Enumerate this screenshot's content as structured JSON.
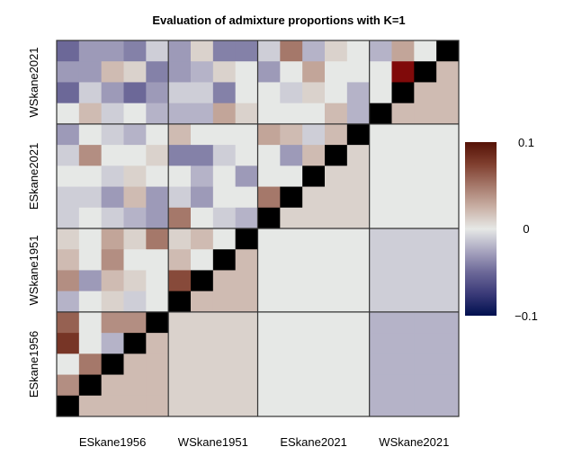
{
  "chart_data": {
    "type": "heatmap",
    "title": "Evaluation of admixture proportions with K=1",
    "populations_x": [
      "ESkane1956",
      "WSkane1951",
      "ESkane2021",
      "WSkane2021"
    ],
    "populations_y_top_to_bottom": [
      "WSkane2021",
      "ESkane2021",
      "WSkane1951",
      "ESkane1956"
    ],
    "population_sizes_x": [
      5,
      4,
      5,
      4
    ],
    "population_sizes_y_top_to_bottom": [
      4,
      5,
      4,
      5
    ],
    "colorbar": {
      "min": -0.1,
      "max": 0.1,
      "tick_labels": [
        "0.1",
        "0",
        "−0.1"
      ],
      "ticks": [
        0.1,
        0,
        -0.1
      ]
    },
    "colors": {
      "low": "#00104f",
      "mid": "#e6e8e6",
      "high": "#551206",
      "out_of_range": "#800a0a",
      "diagonal": "#000000"
    },
    "matrix_rows_top_to_bottom": [
      [
        -0.05,
        -0.03,
        -0.03,
        -0.04,
        -0.01,
        -0.03,
        0.01,
        -0.04,
        -0.04,
        -0.01,
        0.05,
        -0.02,
        0.01,
        0,
        -0.02,
        0.03,
        0,
        null
      ],
      [
        -0.03,
        -0.03,
        0.02,
        0.01,
        -0.04,
        -0.03,
        -0.02,
        0.01,
        0,
        -0.03,
        0,
        0.03,
        0,
        0,
        0,
        0.12,
        null,
        0.02
      ],
      [
        -0.05,
        -0.01,
        -0.03,
        -0.05,
        -0.03,
        -0.01,
        -0.01,
        -0.04,
        0,
        0,
        -0.01,
        0.01,
        0,
        -0.02,
        0,
        null,
        0.02,
        0.02
      ],
      [
        0,
        0.02,
        -0.01,
        0,
        -0.02,
        -0.02,
        -0.02,
        0.03,
        0.01,
        0,
        0,
        0,
        0.02,
        -0.02,
        null,
        0.02,
        0.02,
        0.02
      ],
      [
        -0.03,
        0,
        -0.01,
        -0.02,
        0,
        0.02,
        0,
        0,
        0,
        0.03,
        0.02,
        -0.01,
        0.02,
        null,
        0,
        0,
        0,
        0
      ],
      [
        -0.01,
        0.04,
        0,
        0,
        0.01,
        -0.04,
        -0.04,
        -0.01,
        0,
        0,
        -0.03,
        0.02,
        null,
        0.01,
        0,
        0,
        0,
        0
      ],
      [
        0,
        0,
        -0.01,
        0.01,
        0,
        0,
        -0.02,
        0,
        -0.03,
        0,
        0,
        null,
        0.01,
        0.01,
        0,
        0,
        0,
        0
      ],
      [
        -0.01,
        -0.01,
        -0.03,
        0.02,
        -0.03,
        -0.01,
        -0.03,
        0,
        0,
        0.05,
        null,
        0.01,
        0.01,
        0.01,
        0,
        0,
        0,
        0
      ],
      [
        -0.01,
        0,
        -0.01,
        -0.02,
        -0.03,
        0.05,
        0,
        -0.01,
        -0.02,
        null,
        0.01,
        0.01,
        0.01,
        0.01,
        0,
        0,
        0,
        0
      ],
      [
        0.01,
        0,
        0.03,
        0.01,
        0.05,
        0.01,
        0.02,
        0,
        null,
        0,
        0,
        0,
        0,
        0,
        -0.01,
        -0.01,
        -0.01,
        -0.01
      ],
      [
        0.02,
        0,
        0.04,
        0,
        0,
        0.02,
        0,
        null,
        0.02,
        0,
        0,
        0,
        0,
        0,
        -0.01,
        -0.01,
        -0.01,
        -0.01
      ],
      [
        0.04,
        -0.03,
        0.02,
        0.01,
        0,
        0.07,
        null,
        0.02,
        0.02,
        0,
        0,
        0,
        0,
        0,
        -0.01,
        -0.01,
        -0.01,
        -0.01
      ],
      [
        -0.02,
        0,
        0.01,
        -0.01,
        0,
        null,
        0.02,
        0.02,
        0.02,
        0,
        0,
        0,
        0,
        0,
        -0.01,
        -0.01,
        -0.01,
        -0.01
      ],
      [
        0.06,
        0,
        0.04,
        0.04,
        null,
        0.01,
        0.01,
        0.01,
        0.01,
        0,
        0,
        0,
        0,
        0,
        -0.02,
        -0.02,
        -0.02,
        -0.02
      ],
      [
        0.08,
        0,
        -0.02,
        null,
        0.02,
        0.01,
        0.01,
        0.01,
        0.01,
        0,
        0,
        0,
        0,
        0,
        -0.02,
        -0.02,
        -0.02,
        -0.02
      ],
      [
        0,
        0.05,
        null,
        0.02,
        0.02,
        0.01,
        0.01,
        0.01,
        0.01,
        0,
        0,
        0,
        0,
        0,
        -0.02,
        -0.02,
        -0.02,
        -0.02
      ],
      [
        0.04,
        null,
        0.02,
        0.02,
        0.02,
        0.01,
        0.01,
        0.01,
        0.01,
        0,
        0,
        0,
        0,
        0,
        -0.02,
        -0.02,
        -0.02,
        -0.02
      ],
      [
        null,
        0.02,
        0.02,
        0.02,
        0.02,
        0.01,
        0.01,
        0.01,
        0.01,
        0,
        0,
        0,
        0,
        0,
        -0.02,
        -0.02,
        -0.02,
        -0.02
      ]
    ]
  }
}
